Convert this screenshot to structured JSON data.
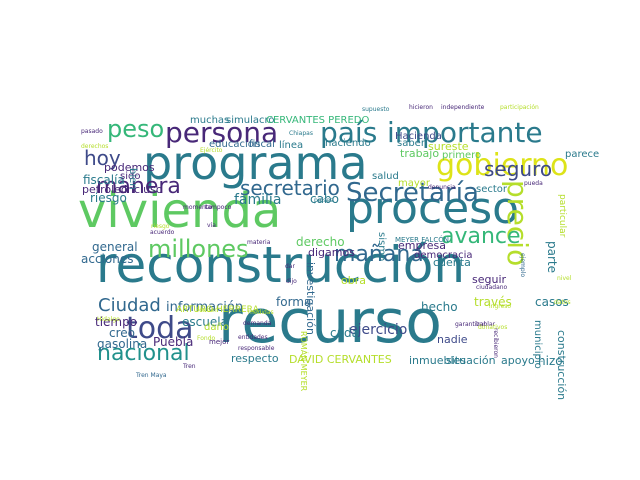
{
  "word_cloud": {
    "words": [
      {
        "text": "recurso",
        "color": "#2a7a8c"
      },
      {
        "text": "reconstrucción",
        "color": "#2a7a8c"
      },
      {
        "text": "vivienda",
        "color": "#5ec962"
      },
      {
        "text": "proceso",
        "color": "#2a7a8c"
      },
      {
        "text": "programa",
        "color": "#2a7a8c"
      },
      {
        "text": "persona",
        "color": "#482878"
      },
      {
        "text": "país",
        "color": "#2a7a8c"
      },
      {
        "text": "importante",
        "color": "#2a7a8c"
      },
      {
        "text": "peso",
        "color": "#35b779"
      },
      {
        "text": "gobierno",
        "color": "#dde318"
      },
      {
        "text": "hoy",
        "color": "#3e4a89"
      },
      {
        "text": "Secretaría",
        "color": "#31688e"
      },
      {
        "text": "seguro",
        "color": "#3e4a89"
      },
      {
        "text": "manera",
        "color": "#482878"
      },
      {
        "text": "secretario",
        "color": "#31688e"
      },
      {
        "text": "precio",
        "color": "#b5de2b"
      },
      {
        "text": "millones",
        "color": "#5ec962"
      },
      {
        "text": "avance",
        "color": "#35b779"
      },
      {
        "text": "mañana",
        "color": "#31688e"
      },
      {
        "text": "toda",
        "color": "#3e4a89"
      },
      {
        "text": "nacional",
        "color": "#21918c"
      },
      {
        "text": "Ciudad",
        "color": "#31688e"
      },
      {
        "text": "familia",
        "color": "#2a7a8c"
      },
      {
        "text": "ejercicio",
        "color": "#3e4a89"
      },
      {
        "text": "información",
        "color": "#31688e"
      },
      {
        "text": "general",
        "color": "#31688e"
      },
      {
        "text": "acciones",
        "color": "#31688e"
      },
      {
        "text": "fiscalía",
        "color": "#2a7a8c"
      },
      {
        "text": "riesgo",
        "color": "#2a7a8c"
      },
      {
        "text": "petróleo",
        "color": "#482878"
      },
      {
        "text": "incluso",
        "color": "#482878"
      },
      {
        "text": "podemos",
        "color": "#482878"
      },
      {
        "text": "sido",
        "color": "#482878"
      },
      {
        "text": "muchas",
        "color": "#2a7a8c"
      },
      {
        "text": "simulacro",
        "color": "#2a7a8c"
      },
      {
        "text": "CERVANTES PEREDO",
        "color": "#35b779"
      },
      {
        "text": "educación",
        "color": "#31688e"
      },
      {
        "text": "fiscal",
        "color": "#31688e"
      },
      {
        "text": "línea",
        "color": "#2a7a8c"
      },
      {
        "text": "haciendo",
        "color": "#2a7a8c"
      },
      {
        "text": "saber",
        "color": "#2a7a8c"
      },
      {
        "text": "Hacienda",
        "color": "#3e4a89"
      },
      {
        "text": "sureste",
        "color": "#b5de2b"
      },
      {
        "text": "trabajo",
        "color": "#5ec962"
      },
      {
        "text": "primero",
        "color": "#5ec962"
      },
      {
        "text": "mayor",
        "color": "#b5de2b"
      },
      {
        "text": "salud",
        "color": "#2a7a8c"
      },
      {
        "text": "sismo",
        "color": "#2a7a8c"
      },
      {
        "text": "sector",
        "color": "#2a7a8c"
      },
      {
        "text": "parece",
        "color": "#2a7a8c"
      },
      {
        "text": "cabo",
        "color": "#2a7a8c"
      },
      {
        "text": "derecho",
        "color": "#5ec962"
      },
      {
        "text": "digamos",
        "color": "#482878"
      },
      {
        "text": "empresa",
        "color": "#482878"
      },
      {
        "text": "democracia",
        "color": "#482878"
      },
      {
        "text": "cuenta",
        "color": "#2a7a8c"
      },
      {
        "text": "parte",
        "color": "#2a7a8c"
      },
      {
        "text": "forma",
        "color": "#31688e"
      },
      {
        "text": "investigación",
        "color": "#31688e"
      },
      {
        "text": "obra",
        "color": "#b5de2b"
      },
      {
        "text": "hecho",
        "color": "#2a7a8c"
      },
      {
        "text": "través",
        "color": "#b5de2b"
      },
      {
        "text": "casos",
        "color": "#2a7a8c"
      },
      {
        "text": "seguir",
        "color": "#482878"
      },
      {
        "text": "escuela",
        "color": "#2a7a8c"
      },
      {
        "text": "tiempo",
        "color": "#482878"
      },
      {
        "text": "creo",
        "color": "#31688e"
      },
      {
        "text": "gasolina",
        "color": "#31688e"
      },
      {
        "text": "Puebla",
        "color": "#482878"
      },
      {
        "text": "respecto",
        "color": "#2a7a8c"
      },
      {
        "text": "cada",
        "color": "#2a7a8c"
      },
      {
        "text": "nadie",
        "color": "#3e4a89"
      },
      {
        "text": "inmuebles",
        "color": "#2a7a8c"
      },
      {
        "text": "situación",
        "color": "#2a7a8c"
      },
      {
        "text": "apoyo",
        "color": "#2a7a8c"
      },
      {
        "text": "hizo",
        "color": "#2a7a8c"
      },
      {
        "text": "municipio",
        "color": "#2a7a8c"
      },
      {
        "text": "construcción",
        "color": "#2a7a8c"
      },
      {
        "text": "DAVID CERVANTES",
        "color": "#b5de2b"
      },
      {
        "text": "ROMÁN MEYER",
        "color": "#b5de2b"
      },
      {
        "text": "ARTURO HERRERA",
        "color": "#b5de2b"
      },
      {
        "text": "MEYER FALCÓN",
        "color": "#2a7a8c"
      },
      {
        "text": "particular",
        "color": "#b5de2b"
      },
      {
        "text": "bien",
        "color": "#2a7a8c"
      },
      {
        "text": "daño",
        "color": "#b5de2b"
      },
      {
        "text": "mejor",
        "color": "#482878"
      },
      {
        "text": "demanda",
        "color": "#482878"
      },
      {
        "text": "entidades",
        "color": "#482878"
      },
      {
        "text": "responsable",
        "color": "#482878"
      },
      {
        "text": "garantizar",
        "color": "#482878"
      },
      {
        "text": "hablar",
        "color": "#482878"
      },
      {
        "text": "recibieron",
        "color": "#482878"
      },
      {
        "text": "hicieron",
        "color": "#482878"
      },
      {
        "text": "independiente",
        "color": "#482878"
      },
      {
        "text": "participación",
        "color": "#b5de2b"
      },
      {
        "text": "supuesto",
        "color": "#2a7a8c"
      },
      {
        "text": "pasado",
        "color": "#482878"
      },
      {
        "text": "Chiapas",
        "color": "#2a7a8c"
      },
      {
        "text": "denuncia",
        "color": "#482878"
      },
      {
        "text": "pueda",
        "color": "#482878"
      },
      {
        "text": "ejemplo",
        "color": "#31688e"
      },
      {
        "text": "donativos",
        "color": "#b5de2b"
      },
      {
        "text": "países",
        "color": "#2a7a8c"
      },
      {
        "text": "vía",
        "color": "#482878"
      },
      {
        "text": "materia",
        "color": "#482878"
      },
      {
        "text": "dijo",
        "color": "#482878"
      },
      {
        "text": "Tren Maya",
        "color": "#31688e"
      },
      {
        "text": "ciudadano",
        "color": "#482878"
      },
      {
        "text": "momento",
        "color": "#482878"
      },
      {
        "text": "tampoco",
        "color": "#482878"
      },
      {
        "text": "Tren",
        "color": "#482878"
      },
      {
        "text": "riesgo",
        "color": "#b5de2b"
      },
      {
        "text": "acuerdo",
        "color": "#482878"
      },
      {
        "text": "Hidalgo",
        "color": "#b5de2b"
      },
      {
        "text": "Fondo",
        "color": "#b5de2b"
      },
      {
        "text": "derechos",
        "color": "#b5de2b"
      },
      {
        "text": "medidas",
        "color": "#b5de2b"
      },
      {
        "text": "Ejército",
        "color": "#b5de2b"
      },
      {
        "text": "Fonden",
        "color": "#b5de2b"
      },
      {
        "text": "dar",
        "color": "#482878"
      },
      {
        "text": "ingreso",
        "color": "#b5de2b"
      },
      {
        "text": "datos",
        "color": "#b5de2b"
      },
      {
        "text": "nivel",
        "color": "#b5de2b"
      }
    ]
  }
}
